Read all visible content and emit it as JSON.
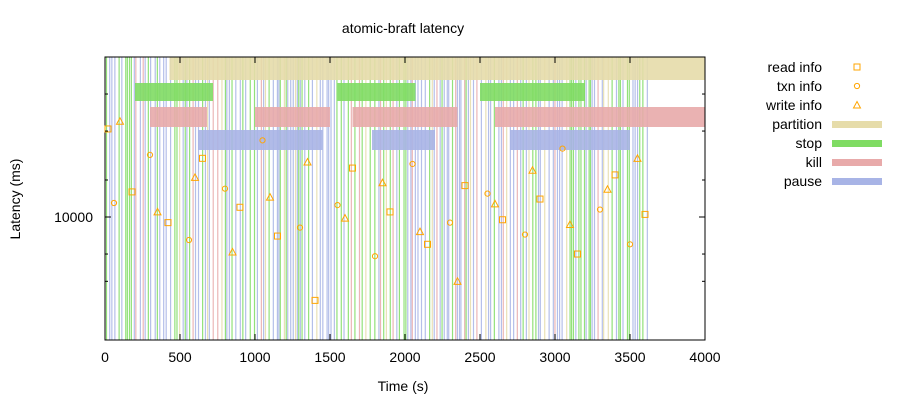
{
  "chart_data": {
    "type": "scatter",
    "title": "atomic-braft latency",
    "xlabel": "Time (s)",
    "ylabel": "Latency (ms)",
    "xlim": [
      0,
      4000
    ],
    "ylim": [
      1000,
      200000
    ],
    "y_scale": "log",
    "x_ticks": [
      "0",
      "500",
      "1000",
      "1500",
      "2000",
      "2500",
      "3000",
      "3500",
      "4000"
    ],
    "y_ticks": [
      {
        "value": 10000,
        "label": "10000"
      }
    ],
    "legend_position": "top-right",
    "series": [
      {
        "name": "read info",
        "marker": "square",
        "color": "#ffa500",
        "points": [
          [
            20,
            52000
          ],
          [
            180,
            16000
          ],
          [
            420,
            9000
          ],
          [
            650,
            30000
          ],
          [
            900,
            12000
          ],
          [
            1150,
            7000
          ],
          [
            1400,
            2100
          ],
          [
            1650,
            25000
          ],
          [
            1900,
            11000
          ],
          [
            2150,
            6000
          ],
          [
            2400,
            18000
          ],
          [
            2650,
            9500
          ],
          [
            2900,
            14000
          ],
          [
            3150,
            5000
          ],
          [
            3400,
            22000
          ],
          [
            3600,
            10500
          ]
        ]
      },
      {
        "name": "txn info",
        "marker": "circle",
        "color": "#ffa500",
        "points": [
          [
            60,
            13000
          ],
          [
            300,
            32000
          ],
          [
            560,
            6500
          ],
          [
            800,
            17000
          ],
          [
            1050,
            42000
          ],
          [
            1300,
            8200
          ],
          [
            1550,
            12500
          ],
          [
            1800,
            4800
          ],
          [
            2050,
            27000
          ],
          [
            2300,
            9000
          ],
          [
            2550,
            15500
          ],
          [
            2800,
            7200
          ],
          [
            3050,
            36000
          ],
          [
            3300,
            11500
          ],
          [
            3500,
            6000
          ]
        ]
      },
      {
        "name": "write info",
        "marker": "triangle",
        "color": "#ffa500",
        "points": [
          [
            100,
            60000
          ],
          [
            350,
            11000
          ],
          [
            600,
            21000
          ],
          [
            850,
            5200
          ],
          [
            1100,
            14500
          ],
          [
            1350,
            28000
          ],
          [
            1600,
            9800
          ],
          [
            1850,
            19000
          ],
          [
            2100,
            7600
          ],
          [
            2350,
            3000
          ],
          [
            2600,
            12800
          ],
          [
            2850,
            24000
          ],
          [
            3100,
            8700
          ],
          [
            3350,
            16800
          ],
          [
            3550,
            30000
          ]
        ]
      }
    ],
    "bands": [
      {
        "name": "partition",
        "color": "#e6dcaa"
      },
      {
        "name": "stop",
        "color": "#7fdc63"
      },
      {
        "name": "kill",
        "color": "#e8aaaa"
      },
      {
        "name": "pause",
        "color": "#a8b4e6"
      }
    ]
  }
}
